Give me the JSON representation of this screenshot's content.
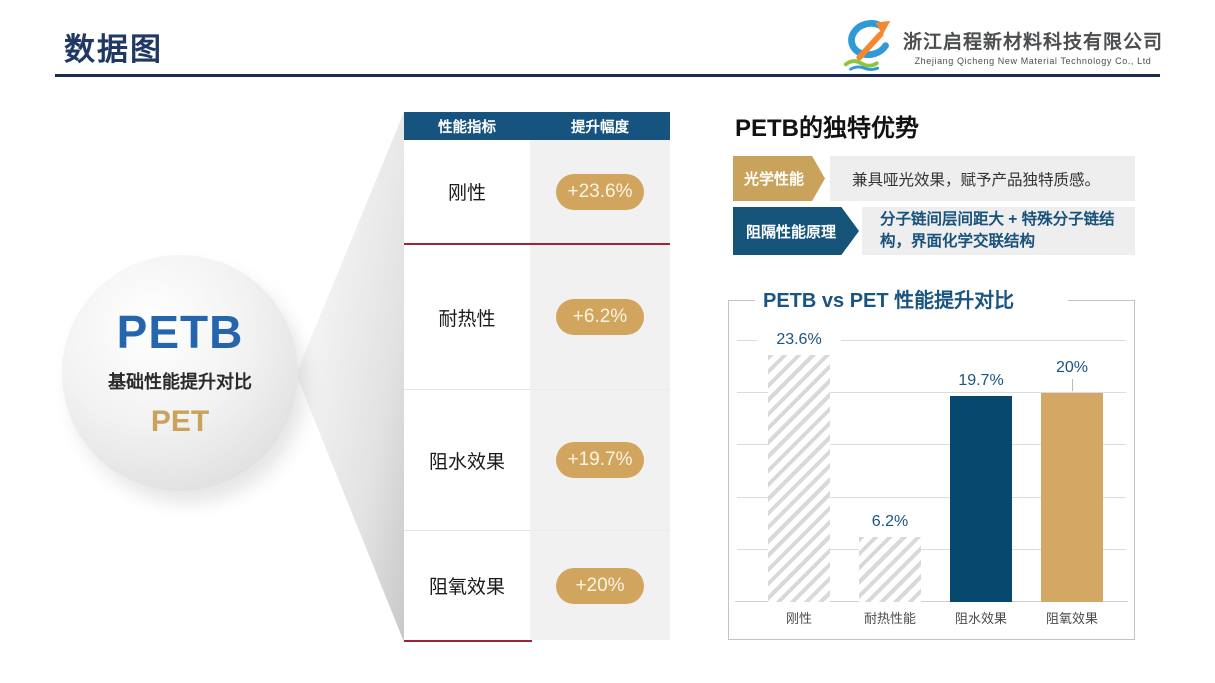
{
  "header": {
    "title": "数据图",
    "company_cn": "浙江启程新材料科技有限公司",
    "company_en": "Zhejiang Qicheng New Material Technology Co., Ltd"
  },
  "bubble": {
    "top": "PETB",
    "middle": "基础性能提升对比",
    "bottom": "PET"
  },
  "table": {
    "headers": [
      "性能指标",
      "提升幅度"
    ],
    "rows": [
      {
        "metric": "刚性",
        "value": "+23.6%"
      },
      {
        "metric": "耐热性",
        "value": "+6.2%"
      },
      {
        "metric": "阻水效果",
        "value": "+19.7%"
      },
      {
        "metric": "阻氧效果",
        "value": "+20%"
      }
    ]
  },
  "advantages": {
    "title": "PETB的独特优势",
    "items": [
      {
        "tag": "光学性能",
        "text": "兼具哑光效果，赋予产品独特质感。"
      },
      {
        "tag": "阻隔性能原理",
        "text": "分子链间层间距大 + 特殊分子链结构，界面化学交联结构"
      }
    ]
  },
  "chart_data": {
    "type": "bar",
    "title": "PETB vs PET 性能提升对比",
    "categories": [
      "刚性",
      "耐热性能",
      "阻水效果",
      "阻氧效果"
    ],
    "values": [
      23.6,
      6.2,
      19.7,
      20
    ],
    "labels": [
      "23.6%",
      "6.2%",
      "19.7%",
      "20%"
    ],
    "bar_styles": [
      "hatched",
      "hatched",
      "navy",
      "gold"
    ],
    "leader_line": [
      false,
      false,
      false,
      true
    ],
    "ylim": [
      0,
      29
    ],
    "gridlines": [
      5,
      10,
      15,
      20,
      25
    ],
    "grid": "horizontal",
    "legend": "none",
    "xlabel": "",
    "ylabel": ""
  },
  "colors": {
    "title_navy": "#1F3864",
    "table_header_blue": "#17537F",
    "accent_gold": "#D2A55F",
    "accent_red": "#9B2638",
    "bar_navy": "#07486E",
    "bar_gold": "#D5A765",
    "chart_text_blue": "#1A5480"
  }
}
